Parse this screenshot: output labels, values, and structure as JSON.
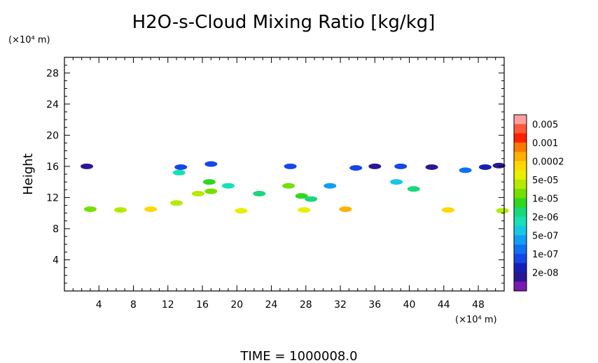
{
  "chart_data": {
    "type": "heatmap",
    "title": "H2O-s-Cloud Mixing Ratio [kg/kg]",
    "ylabel": "Height",
    "yunit": "(×10⁴ m)",
    "xunit": "(×10⁴ m)",
    "footer": "TIME  =  1000008.0",
    "xlim": [
      0,
      51
    ],
    "ylim": [
      0,
      30
    ],
    "xticks": [
      "4",
      "8",
      "12",
      "16",
      "20",
      "24",
      "28",
      "32",
      "36",
      "40",
      "44",
      "48"
    ],
    "xtick_values": [
      4,
      8,
      12,
      16,
      20,
      24,
      28,
      32,
      36,
      40,
      44,
      48
    ],
    "yticks": [
      "4",
      "8",
      "12",
      "16",
      "20",
      "24",
      "28"
    ],
    "ytick_values": [
      4,
      8,
      12,
      16,
      20,
      24,
      28
    ],
    "colorbar": {
      "labels": [
        "0.005",
        "0.001",
        "0.0002",
        "5e-05",
        "1e-05",
        "2e-06",
        "5e-07",
        "1e-07",
        "2e-08"
      ],
      "colors": [
        "#ff9fa0",
        "#ff5a3c",
        "#ff2000",
        "#ff7a00",
        "#ffb000",
        "#ffd800",
        "#e6f000",
        "#b6ea00",
        "#73e000",
        "#2ed81c",
        "#19d878",
        "#16e0b6",
        "#14c8e6",
        "#129ef4",
        "#1070f2",
        "#1646e6",
        "#1820b4",
        "#2a1892",
        "#7a1ab0"
      ]
    },
    "cells": [
      {
        "x": 2.6,
        "y": 16.0,
        "level": 17
      },
      {
        "x": 13.5,
        "y": 15.9,
        "level": 15
      },
      {
        "x": 13.3,
        "y": 15.2,
        "level": 11
      },
      {
        "x": 17.0,
        "y": 16.3,
        "level": 15
      },
      {
        "x": 16.8,
        "y": 14.0,
        "level": 9
      },
      {
        "x": 15.5,
        "y": 12.5,
        "level": 7
      },
      {
        "x": 17.0,
        "y": 12.8,
        "level": 8
      },
      {
        "x": 19.0,
        "y": 13.5,
        "level": 11
      },
      {
        "x": 22.6,
        "y": 12.5,
        "level": 10
      },
      {
        "x": 26.2,
        "y": 16.0,
        "level": 15
      },
      {
        "x": 26.0,
        "y": 13.5,
        "level": 8
      },
      {
        "x": 27.5,
        "y": 12.2,
        "level": 9
      },
      {
        "x": 33.8,
        "y": 15.8,
        "level": 15
      },
      {
        "x": 36.0,
        "y": 16.0,
        "level": 17
      },
      {
        "x": 39.0,
        "y": 16.0,
        "level": 15
      },
      {
        "x": 38.5,
        "y": 14.0,
        "level": 12
      },
      {
        "x": 40.5,
        "y": 13.1,
        "level": 10
      },
      {
        "x": 42.6,
        "y": 15.9,
        "level": 17
      },
      {
        "x": 46.5,
        "y": 15.5,
        "level": 14
      },
      {
        "x": 48.8,
        "y": 15.9,
        "level": 16
      },
      {
        "x": 50.4,
        "y": 16.1,
        "level": 17
      },
      {
        "x": 30.8,
        "y": 13.5,
        "level": 13
      },
      {
        "x": 28.6,
        "y": 11.8,
        "level": 10
      },
      {
        "x": 10.0,
        "y": 10.5,
        "level": 5
      },
      {
        "x": 13.0,
        "y": 11.3,
        "level": 7
      },
      {
        "x": 3.0,
        "y": 10.5,
        "level": 8
      },
      {
        "x": 6.5,
        "y": 10.4,
        "level": 7
      },
      {
        "x": 20.5,
        "y": 10.3,
        "level": 6
      },
      {
        "x": 27.8,
        "y": 10.4,
        "level": 6
      },
      {
        "x": 32.6,
        "y": 10.5,
        "level": 4
      },
      {
        "x": 44.5,
        "y": 10.4,
        "level": 5
      },
      {
        "x": 50.8,
        "y": 10.3,
        "level": 7
      }
    ]
  }
}
